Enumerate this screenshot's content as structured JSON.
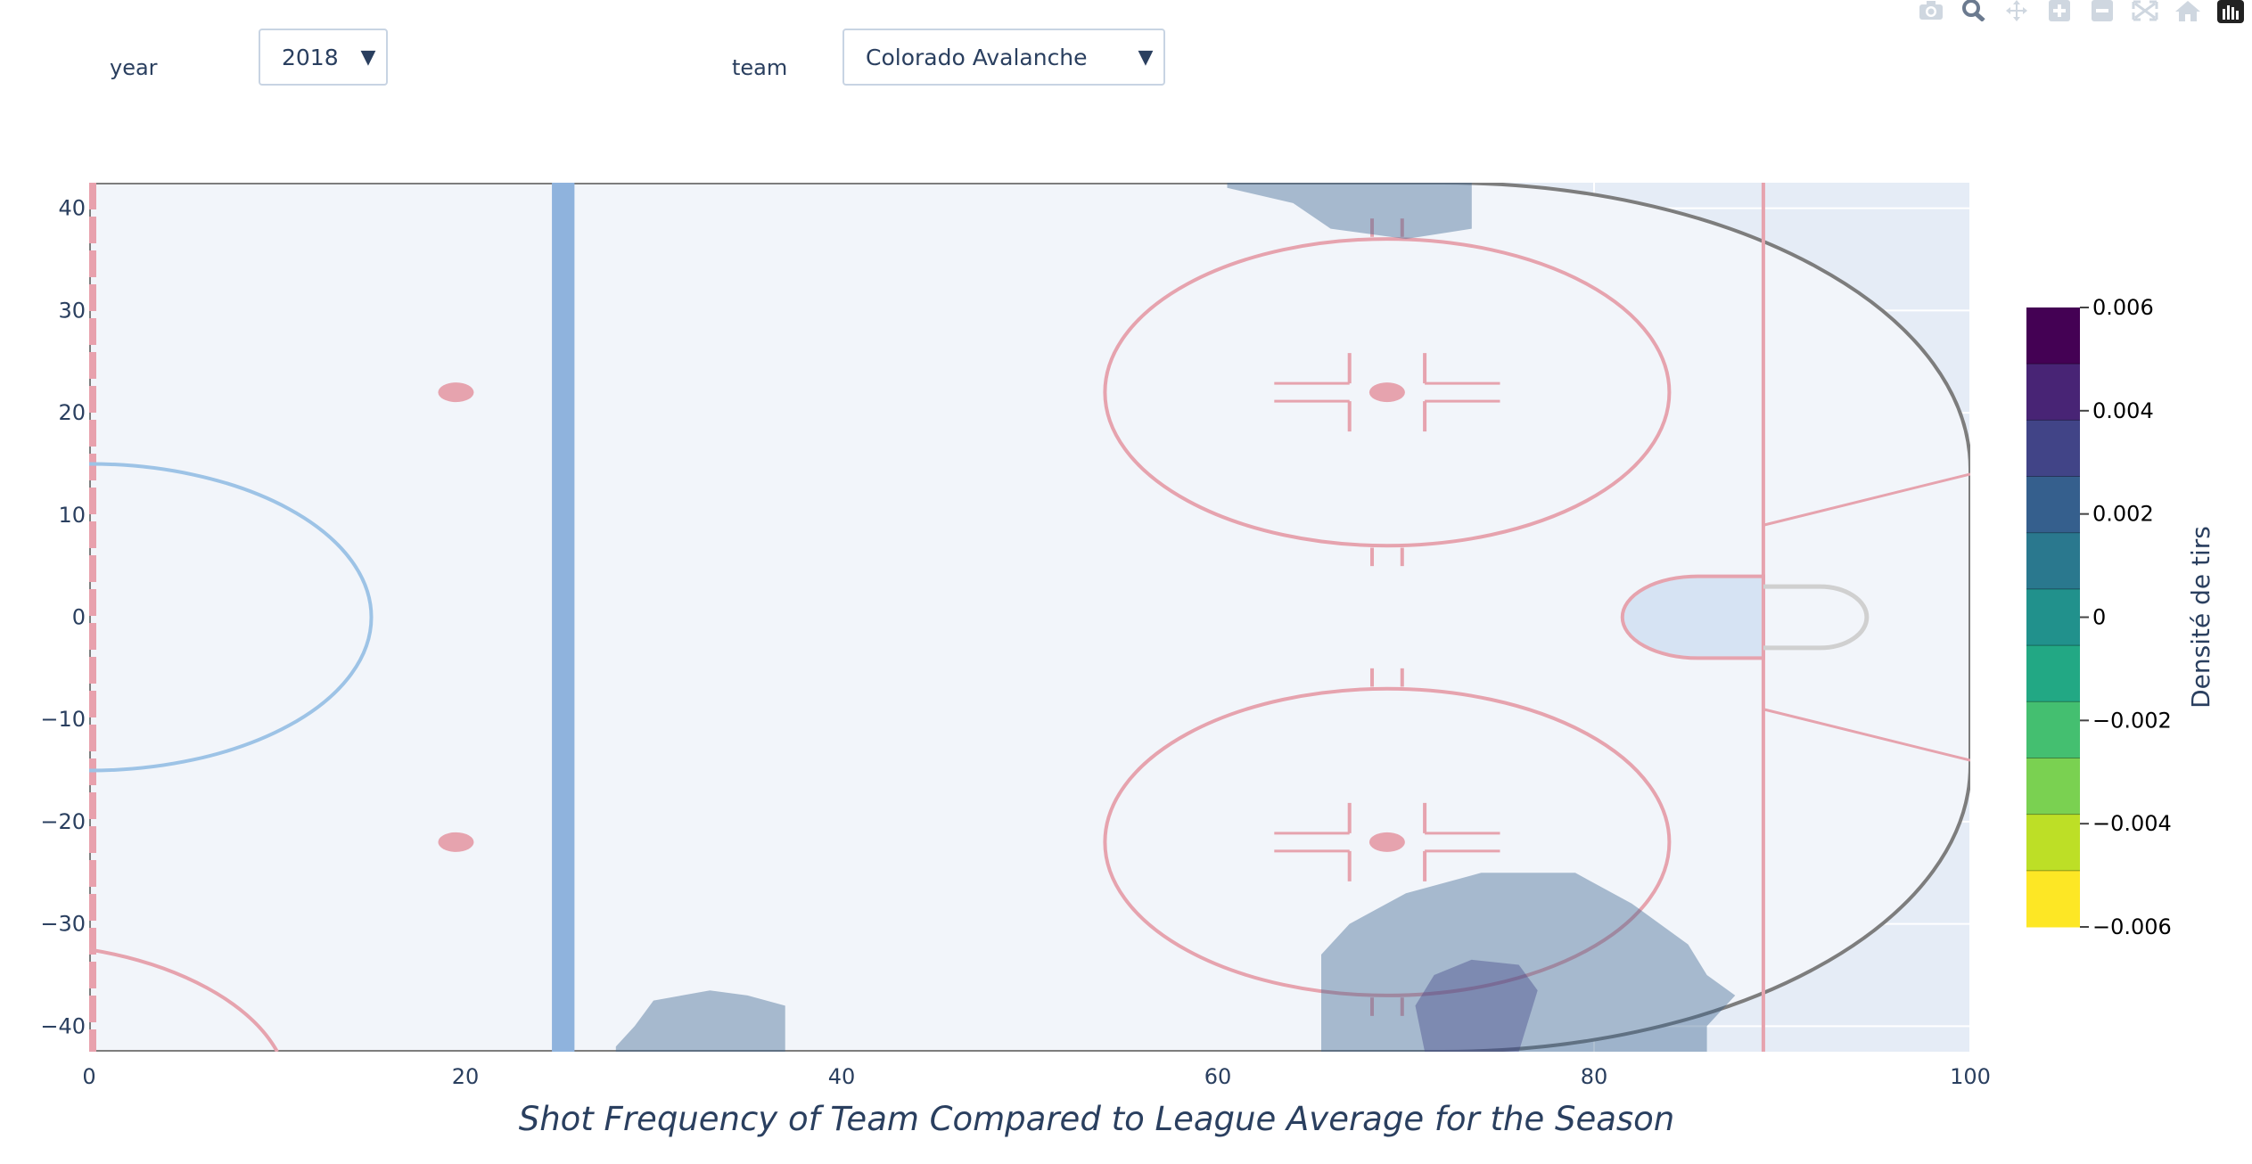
{
  "controls": {
    "year_label": "year",
    "year_value": "2018",
    "team_label": "team",
    "team_value": "Colorado Avalanche"
  },
  "modebar": {
    "icons": [
      "camera-icon",
      "zoom-icon",
      "pan-icon",
      "zoom-in-icon",
      "zoom-out-icon",
      "autoscale-icon",
      "reset-axes-icon",
      "plotly-logo-icon"
    ]
  },
  "chart_data": {
    "type": "heatmap",
    "subtype": "filled-contour over hockey rink image",
    "title": "Shot Frequency of Team Compared to League Average for the Season",
    "xlabel": "",
    "ylabel": "",
    "xlim": [
      0,
      100
    ],
    "ylim": [
      -42.5,
      42.5
    ],
    "x_ticks": [
      0,
      20,
      40,
      60,
      80,
      100
    ],
    "y_ticks": [
      40,
      30,
      20,
      10,
      0,
      -10,
      -20,
      -30,
      -40
    ],
    "x_tick_labels": [
      "0",
      "20",
      "40",
      "60",
      "80",
      "100"
    ],
    "y_tick_labels": [
      "40",
      "30",
      "20",
      "10",
      "0",
      "−10",
      "−20",
      "−30",
      "−40"
    ],
    "grid": true,
    "colorscale": "Viridis (reversed)",
    "colorbar": {
      "title": "Densité de tirs",
      "ticks": [
        0.006,
        0.004,
        0.002,
        0,
        -0.002,
        -0.004,
        -0.006
      ],
      "tick_labels": [
        "0.006",
        "0.004",
        "0.002",
        "0",
        "−0.002",
        "−0.004",
        "−0.006"
      ],
      "bands": [
        "#440154",
        "#482475",
        "#414487",
        "#355f8d",
        "#2a788e",
        "#21918c",
        "#22a884",
        "#44bf70",
        "#7ad151",
        "#bddf26",
        "#fde725"
      ],
      "range": [
        -0.006,
        0.006
      ]
    },
    "contour_regions": [
      {
        "name": "top-slot-region",
        "level": 0.001,
        "color": "#355f8d",
        "points": [
          [
            60.5,
            42.5
          ],
          [
            73.5,
            42.5
          ],
          [
            73.5,
            38
          ],
          [
            70,
            37
          ],
          [
            66,
            38
          ],
          [
            64,
            40.5
          ],
          [
            60.5,
            42
          ]
        ]
      },
      {
        "name": "bottom-left-region",
        "level": 0.001,
        "color": "#355f8d",
        "points": [
          [
            28,
            -42.5
          ],
          [
            37,
            -42.5
          ],
          [
            37,
            -38
          ],
          [
            35,
            -37
          ],
          [
            33,
            -36.5
          ],
          [
            30,
            -37.5
          ],
          [
            29,
            -40
          ],
          [
            28,
            -42
          ]
        ]
      },
      {
        "name": "bottom-right-region",
        "level": 0.001,
        "color": "#355f8d",
        "points": [
          [
            65.5,
            -42.5
          ],
          [
            86,
            -42.5
          ],
          [
            86,
            -40
          ],
          [
            87.5,
            -37
          ],
          [
            86,
            -35
          ],
          [
            85,
            -32
          ],
          [
            82,
            -28
          ],
          [
            79,
            -25
          ],
          [
            74,
            -25
          ],
          [
            70,
            -27
          ],
          [
            67,
            -30
          ],
          [
            65.5,
            -33
          ]
        ]
      },
      {
        "name": "bottom-right-core",
        "level": 0.002,
        "color": "#414487",
        "points": [
          [
            71,
            -42.5
          ],
          [
            76,
            -42.5
          ],
          [
            77,
            -36.5
          ],
          [
            76,
            -34
          ],
          [
            73.5,
            -33.5
          ],
          [
            71.5,
            -35
          ],
          [
            70.5,
            -38
          ]
        ]
      }
    ]
  }
}
